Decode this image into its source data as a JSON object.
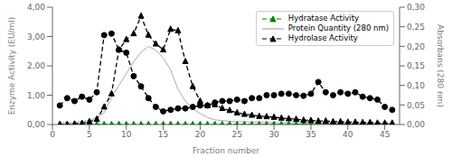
{
  "chart_data": {
    "type": "line",
    "xlabel": "Fraction number",
    "ylabel": "Enzyme Activity (EU/ml)",
    "y2label": "Absorbans (280 nm)",
    "x": [
      1,
      2,
      3,
      4,
      5,
      6,
      7,
      8,
      9,
      10,
      11,
      12,
      13,
      14,
      15,
      16,
      17,
      18,
      19,
      20,
      21,
      22,
      23,
      24,
      25,
      26,
      27,
      28,
      29,
      30,
      31,
      32,
      33,
      34,
      35,
      36,
      37,
      38,
      39,
      40,
      41,
      42,
      43,
      44,
      45,
      46
    ],
    "xlim": [
      0,
      47
    ],
    "xticks": [
      0,
      5,
      10,
      15,
      20,
      25,
      30,
      35,
      40,
      45
    ],
    "ylim": [
      0,
      4.0
    ],
    "yticks": [
      {
        "value": 0.0,
        "label": "0,00"
      },
      {
        "value": 1.0,
        "label": "1,00"
      },
      {
        "value": 2.0,
        "label": "2,00"
      },
      {
        "value": 3.0,
        "label": "3,00"
      },
      {
        "value": 4.0,
        "label": "4,00"
      }
    ],
    "y2lim": [
      0,
      0.3
    ],
    "y2ticks": [
      {
        "value": 0.0,
        "label": "0,00"
      },
      {
        "value": 0.05,
        "label": "0,05"
      },
      {
        "value": 0.1,
        "label": "0,10"
      },
      {
        "value": 0.15,
        "label": "0,15"
      },
      {
        "value": 0.2,
        "label": "0,20"
      },
      {
        "value": 0.25,
        "label": "0,25"
      },
      {
        "value": 0.3,
        "label": "0,30"
      }
    ],
    "grid": false,
    "legend": "upper right",
    "series": [
      {
        "name": "Hydratase Activity",
        "color": "green",
        "line_style": "dashed",
        "marker": "triangle",
        "values": [
          0.0,
          0.0,
          0.0,
          0.0,
          0.0,
          0.0,
          0.0,
          0.0,
          0.0,
          0.0,
          0.0,
          0.0,
          0.0,
          0.0,
          0.0,
          0.0,
          0.0,
          0.0,
          0.0,
          0.0,
          0.0,
          0.0,
          0.0,
          0.0,
          0.0,
          0.0,
          0.0,
          0.0,
          0.0,
          0.0,
          0.0,
          0.0,
          0.0,
          0.0,
          0.0,
          0.0,
          0.0,
          0.0,
          0.0,
          0.0,
          0.0,
          0.0,
          0.0,
          0.0,
          0.0,
          0.0
        ]
      },
      {
        "name": "Protein Quantity (280 nm)",
        "color": "#aaaaaa",
        "line_style": "solid",
        "marker": "none",
        "axis": "y2",
        "values": [
          0.005,
          0.005,
          0.005,
          0.008,
          0.01,
          0.018,
          0.03,
          0.07,
          0.1,
          0.13,
          0.16,
          0.185,
          0.2,
          0.19,
          0.17,
          0.14,
          0.09,
          0.06,
          0.04,
          0.028,
          0.018,
          0.012,
          0.01,
          0.008,
          0.007,
          0.007,
          0.006,
          0.006,
          0.006,
          0.005,
          0.005,
          0.005,
          0.005,
          0.005,
          0.004,
          0.004,
          0.004,
          0.004,
          0.004,
          0.004,
          0.004,
          0.004,
          0.004,
          0.004,
          0.003,
          0.003
        ]
      },
      {
        "color": "black",
        "line_style": "dashed",
        "marker": "circle",
        "values": [
          0.65,
          0.9,
          0.8,
          0.95,
          0.85,
          1.1,
          3.05,
          3.1,
          2.55,
          2.45,
          1.65,
          1.3,
          0.9,
          0.6,
          0.45,
          0.5,
          0.55,
          0.55,
          0.6,
          0.65,
          0.65,
          0.75,
          0.8,
          0.8,
          0.85,
          0.8,
          0.9,
          0.9,
          1.0,
          1.0,
          1.05,
          1.05,
          1.0,
          0.98,
          1.05,
          1.45,
          1.1,
          1.0,
          1.1,
          1.05,
          1.1,
          0.95,
          0.9,
          0.85,
          0.6,
          0.5
        ]
      },
      {
        "name": "Hydrolase Activity",
        "color": "black",
        "line_style": "dashed",
        "marker": "triangle",
        "values": [
          0.0,
          0.0,
          0.02,
          0.04,
          0.1,
          0.18,
          0.6,
          1.05,
          2.55,
          2.9,
          3.1,
          3.7,
          3.05,
          2.75,
          2.55,
          3.25,
          3.2,
          2.15,
          1.3,
          0.8,
          0.65,
          0.68,
          0.55,
          0.48,
          0.4,
          0.35,
          0.32,
          0.28,
          0.27,
          0.25,
          0.22,
          0.2,
          0.18,
          0.15,
          0.14,
          0.12,
          0.12,
          0.1,
          0.1,
          0.08,
          0.08,
          0.07,
          0.07,
          0.05,
          0.05,
          0.05
        ]
      }
    ]
  }
}
